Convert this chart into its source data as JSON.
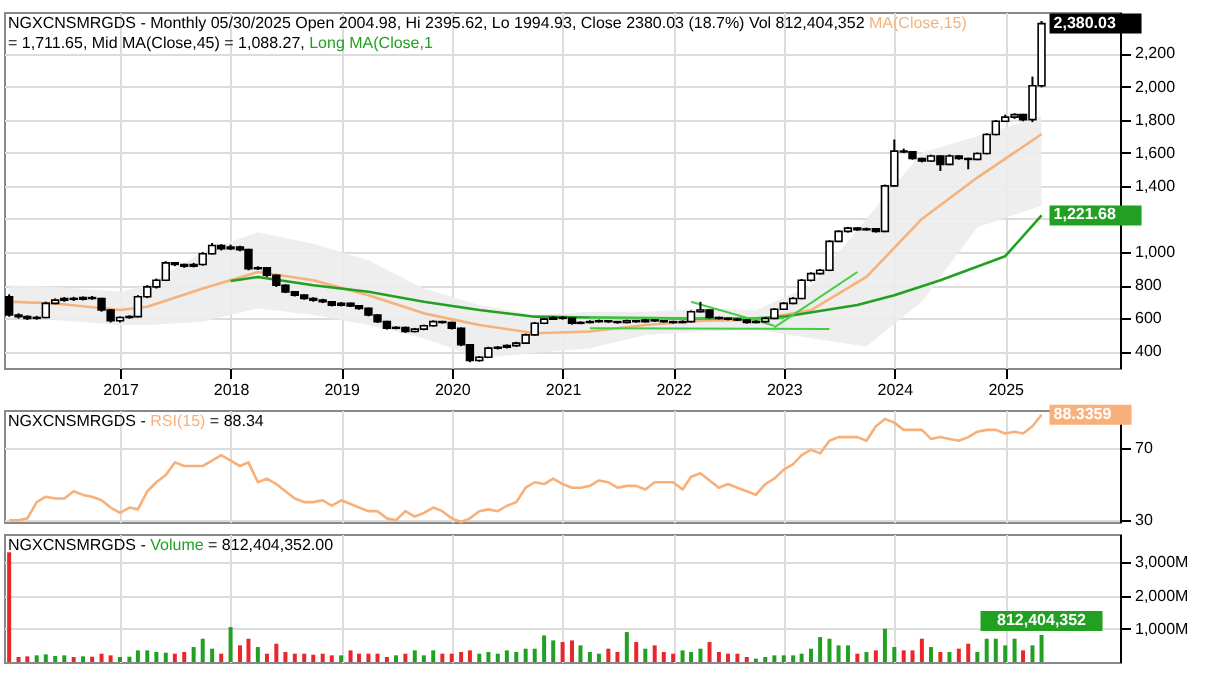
{
  "chart_data": [
    {
      "type": "candlestick",
      "title": "NGXCNSMRGDS - Monthly 05/30/2025 Open 2004.98, Hi 2395.62, Lo 1994.93, Close 2380.03 (18.7%) Vol 812,404,352",
      "legend": "top",
      "grid": true,
      "xlim": [
        "2015-12-15",
        "2026-01-15"
      ],
      "xticks": [
        "2017",
        "2018",
        "2019",
        "2020",
        "2021",
        "2022",
        "2023",
        "2024",
        "2025"
      ],
      "ylim": [
        300,
        2450
      ],
      "yticks": [
        400,
        600,
        800,
        {
          "value": 1000,
          "label": "1,000"
        },
        {
          "value": 1200,
          "label": null
        },
        {
          "value": 1400,
          "label": "1,400"
        },
        {
          "value": 1600,
          "label": "1,600"
        },
        {
          "value": 1800,
          "label": "1,800"
        },
        {
          "value": 2000,
          "label": "2,000"
        },
        {
          "value": 2200,
          "label": "2,200"
        }
      ],
      "x": [
        "2016-01",
        "2016-02",
        "2016-03",
        "2016-04",
        "2016-05",
        "2016-06",
        "2016-07",
        "2016-08",
        "2016-09",
        "2016-10",
        "2016-11",
        "2016-12",
        "2017-01",
        "2017-02",
        "2017-03",
        "2017-04",
        "2017-05",
        "2017-06",
        "2017-07",
        "2017-08",
        "2017-09",
        "2017-10",
        "2017-11",
        "2017-12",
        "2018-01",
        "2018-02",
        "2018-03",
        "2018-04",
        "2018-05",
        "2018-06",
        "2018-07",
        "2018-08",
        "2018-09",
        "2018-10",
        "2018-11",
        "2018-12",
        "2019-01",
        "2019-02",
        "2019-03",
        "2019-04",
        "2019-05",
        "2019-06",
        "2019-07",
        "2019-08",
        "2019-09",
        "2019-10",
        "2019-11",
        "2019-12",
        "2020-01",
        "2020-02",
        "2020-03",
        "2020-04",
        "2020-05",
        "2020-06",
        "2020-07",
        "2020-08",
        "2020-09",
        "2020-10",
        "2020-11",
        "2020-12",
        "2021-01",
        "2021-02",
        "2021-03",
        "2021-04",
        "2021-05",
        "2021-06",
        "2021-07",
        "2021-08",
        "2021-09",
        "2021-10",
        "2021-11",
        "2021-12",
        "2022-01",
        "2022-02",
        "2022-03",
        "2022-04",
        "2022-05",
        "2022-06",
        "2022-07",
        "2022-08",
        "2022-09",
        "2022-10",
        "2022-11",
        "2022-12",
        "2023-01",
        "2023-02",
        "2023-03",
        "2023-04",
        "2023-05",
        "2023-06",
        "2023-07",
        "2023-08",
        "2023-09",
        "2023-10",
        "2023-11",
        "2023-12",
        "2024-01",
        "2024-02",
        "2024-03",
        "2024-04",
        "2024-05",
        "2024-06",
        "2024-07",
        "2024-08",
        "2024-09",
        "2024-10",
        "2024-11",
        "2024-12",
        "2025-01",
        "2025-02",
        "2025-03",
        "2025-04",
        "2025-05"
      ],
      "ohlc": [
        [
          730,
          745,
          610,
          620
        ],
        [
          620,
          630,
          598,
          610
        ],
        [
          610,
          618,
          590,
          600
        ],
        [
          600,
          615,
          592,
          605
        ],
        [
          605,
          700,
          600,
          690
        ],
        [
          690,
          720,
          685,
          710
        ],
        [
          710,
          728,
          700,
          720
        ],
        [
          720,
          730,
          705,
          715
        ],
        [
          715,
          732,
          708,
          725
        ],
        [
          725,
          735,
          712,
          720
        ],
        [
          720,
          724,
          640,
          650
        ],
        [
          650,
          655,
          575,
          585
        ],
        [
          585,
          612,
          575,
          605
        ],
        [
          605,
          618,
          598,
          610
        ],
        [
          610,
          740,
          605,
          730
        ],
        [
          730,
          800,
          722,
          790
        ],
        [
          790,
          840,
          780,
          830
        ],
        [
          830,
          945,
          825,
          935
        ],
        [
          935,
          940,
          915,
          925
        ],
        [
          925,
          930,
          905,
          915
        ],
        [
          915,
          935,
          908,
          925
        ],
        [
          925,
          1000,
          918,
          990
        ],
        [
          990,
          1055,
          985,
          1040
        ],
        [
          1040,
          1048,
          1010,
          1020
        ],
        [
          1020,
          1045,
          1012,
          1030
        ],
        [
          1030,
          1038,
          1005,
          1015
        ],
        [
          1015,
          1020,
          890,
          900
        ],
        [
          900,
          915,
          892,
          905
        ],
        [
          905,
          910,
          850,
          860
        ],
        [
          860,
          865,
          790,
          800
        ],
        [
          800,
          805,
          752,
          760
        ],
        [
          760,
          765,
          732,
          740
        ],
        [
          740,
          745,
          712,
          720
        ],
        [
          720,
          728,
          700,
          710
        ],
        [
          710,
          718,
          692,
          700
        ],
        [
          700,
          705,
          672,
          680
        ],
        [
          680,
          698,
          672,
          690
        ],
        [
          690,
          695,
          668,
          675
        ],
        [
          675,
          680,
          652,
          660
        ],
        [
          660,
          665,
          612,
          620
        ],
        [
          620,
          625,
          572,
          580
        ],
        [
          580,
          585,
          532,
          540
        ],
        [
          540,
          552,
          534,
          545
        ],
        [
          545,
          550,
          512,
          520
        ],
        [
          520,
          542,
          515,
          535
        ],
        [
          535,
          562,
          528,
          555
        ],
        [
          555,
          588,
          550,
          580
        ],
        [
          580,
          585,
          568,
          575
        ],
        [
          575,
          580,
          532,
          540
        ],
        [
          540,
          545,
          432,
          440
        ],
        [
          440,
          445,
          335,
          345
        ],
        [
          345,
          372,
          338,
          365
        ],
        [
          365,
          428,
          360,
          420
        ],
        [
          420,
          432,
          412,
          425
        ],
        [
          425,
          442,
          418,
          435
        ],
        [
          435,
          458,
          428,
          450
        ],
        [
          450,
          508,
          445,
          500
        ],
        [
          500,
          578,
          495,
          570
        ],
        [
          570,
          602,
          565,
          595
        ],
        [
          595,
          612,
          590,
          605
        ],
        [
          605,
          612,
          592,
          600
        ],
        [
          600,
          604,
          562,
          570
        ],
        [
          570,
          582,
          565,
          575
        ],
        [
          575,
          588,
          570,
          580
        ],
        [
          580,
          592,
          575,
          585
        ],
        [
          585,
          590,
          572,
          580
        ],
        [
          580,
          584,
          568,
          575
        ],
        [
          575,
          592,
          570,
          585
        ],
        [
          585,
          590,
          574,
          580
        ],
        [
          580,
          597,
          575,
          590
        ],
        [
          590,
          594,
          578,
          585
        ],
        [
          585,
          590,
          574,
          580
        ],
        [
          580,
          585,
          568,
          575
        ],
        [
          575,
          588,
          570,
          580
        ],
        [
          580,
          648,
          575,
          640
        ],
        [
          640,
          700,
          635,
          650
        ],
        [
          650,
          655,
          598,
          605
        ],
        [
          605,
          610,
          594,
          600
        ],
        [
          600,
          604,
          588,
          595
        ],
        [
          595,
          600,
          584,
          590
        ],
        [
          590,
          595,
          568,
          575
        ],
        [
          575,
          588,
          570,
          580
        ],
        [
          580,
          608,
          575,
          600
        ],
        [
          600,
          662,
          595,
          655
        ],
        [
          655,
          698,
          650,
          690
        ],
        [
          690,
          728,
          685,
          720
        ],
        [
          720,
          838,
          715,
          830
        ],
        [
          830,
          878,
          822,
          870
        ],
        [
          870,
          898,
          865,
          890
        ],
        [
          890,
          1072,
          885,
          1065
        ],
        [
          1065,
          1132,
          1060,
          1125
        ],
        [
          1125,
          1152,
          1118,
          1145
        ],
        [
          1145,
          1150,
          1128,
          1135
        ],
        [
          1135,
          1148,
          1130,
          1140
        ],
        [
          1140,
          1145,
          1118,
          1125
        ],
        [
          1125,
          1408,
          1120,
          1400
        ],
        [
          1400,
          1680,
          1395,
          1610
        ],
        [
          1610,
          1625,
          1598,
          1605
        ],
        [
          1605,
          1610,
          1558,
          1565
        ],
        [
          1565,
          1570,
          1542,
          1550
        ],
        [
          1550,
          1588,
          1545,
          1580
        ],
        [
          1580,
          1585,
          1490,
          1530
        ],
        [
          1530,
          1590,
          1525,
          1580
        ],
        [
          1580,
          1585,
          1558,
          1565
        ],
        [
          1565,
          1570,
          1500,
          1560
        ],
        [
          1560,
          1602,
          1555,
          1595
        ],
        [
          1595,
          1718,
          1590,
          1710
        ],
        [
          1710,
          1798,
          1705,
          1790
        ],
        [
          1790,
          1830,
          1785,
          1815
        ],
        [
          1815,
          1838,
          1805,
          1830
        ],
        [
          1830,
          1835,
          1790,
          1800
        ],
        [
          1800,
          2060,
          1785,
          2004.98
        ],
        [
          2004.98,
          2395.62,
          1994.93,
          2380.03
        ]
      ],
      "series": [
        {
          "type": "line",
          "name": "MA(Close,15)",
          "color": "#f5b27c",
          "x": [
            "2016-01",
            "2016-06",
            "2017-01",
            "2017-04",
            "2017-10",
            "2018-04",
            "2018-10",
            "2019-04",
            "2019-10",
            "2020-04",
            "2020-10",
            "2021-04",
            "2021-10",
            "2022-04",
            "2022-10",
            "2023-04",
            "2023-10",
            "2024-04",
            "2024-10",
            "2025-05"
          ],
          "values": [
            700,
            690,
            650,
            670,
            780,
            880,
            830,
            740,
            630,
            560,
            510,
            520,
            560,
            585,
            590,
            650,
            850,
            1200,
            1450,
            1711.65
          ],
          "lower": [
            600,
            590,
            560,
            560,
            580,
            660,
            620,
            560,
            480,
            360,
            390,
            420,
            500,
            520,
            530,
            480,
            430,
            700,
            1150,
            1280
          ],
          "upper": [
            800,
            790,
            760,
            800,
            1000,
            1120,
            1050,
            950,
            780,
            680,
            620,
            640,
            640,
            660,
            650,
            800,
            1200,
            1600,
            1700,
            1820
          ]
        },
        {
          "type": "line",
          "name": "Long MA(Close,1",
          "color": "#22a022",
          "x": [
            "2018-01",
            "2018-04",
            "2018-10",
            "2019-04",
            "2019-10",
            "2020-04",
            "2020-10",
            "2021-04",
            "2022-01",
            "2022-10",
            "2023-01",
            "2023-09",
            "2024-01",
            "2024-06",
            "2025-01",
            "2025-05"
          ],
          "values": [
            825,
            850,
            800,
            760,
            700,
            650,
            610,
            605,
            600,
            600,
            610,
            680,
            740,
            830,
            975,
            1221.68
          ],
          "value_labels": [
            null,
            null,
            null,
            null,
            null,
            null,
            null,
            null,
            null,
            null,
            null,
            null,
            null,
            null,
            null,
            "1,221.68"
          ]
        },
        {
          "type": "line",
          "color": "#44cc44",
          "x": [
            "2021-04",
            "2023-01"
          ],
          "values": [
            600,
            600
          ]
        },
        {
          "type": "line",
          "color": "#44cc44",
          "x": [
            "2021-04",
            "2023-06"
          ],
          "values": [
            540,
            535
          ]
        },
        {
          "type": "line",
          "color": "#44cc44",
          "x": [
            "2022-03",
            "2022-12"
          ],
          "values": [
            700,
            555
          ]
        },
        {
          "type": "line",
          "color": "#44cc44",
          "x": [
            "2022-12",
            "2023-09"
          ],
          "values": [
            545,
            880
          ]
        }
      ],
      "annotations": [
        "= 1,711.65,",
        "Mid MA(Close,45) = 1,088.27,",
        {
          "text": "2,380.03",
          "x": "2025-05",
          "y": 2380.03
        }
      ]
    },
    {
      "type": "line",
      "title": "NGXCNSMRGDS -",
      "legend": "top left",
      "grid": true,
      "tick_labels": "y",
      "xlim": [
        "2015-12-15",
        "2026-01-15"
      ],
      "xticks": [
        "2017",
        "2018",
        "2019",
        "2020",
        "2021",
        "2022",
        "2023",
        "2024",
        "2025"
      ],
      "ylim": [
        29,
        91
      ],
      "yticks": [
        30,
        70
      ],
      "x": [
        "2016-01",
        "2016-02",
        "2016-03",
        "2016-04",
        "2016-05",
        "2016-06",
        "2016-07",
        "2016-08",
        "2016-09",
        "2016-10",
        "2016-11",
        "2016-12",
        "2017-01",
        "2017-02",
        "2017-03",
        "2017-04",
        "2017-05",
        "2017-06",
        "2017-07",
        "2017-08",
        "2017-09",
        "2017-10",
        "2017-11",
        "2017-12",
        "2018-01",
        "2018-02",
        "2018-03",
        "2018-04",
        "2018-05",
        "2018-06",
        "2018-07",
        "2018-08",
        "2018-09",
        "2018-10",
        "2018-11",
        "2018-12",
        "2019-01",
        "2019-02",
        "2019-03",
        "2019-04",
        "2019-05",
        "2019-06",
        "2019-07",
        "2019-08",
        "2019-09",
        "2019-10",
        "2019-11",
        "2019-12",
        "2020-01",
        "2020-02",
        "2020-03",
        "2020-04",
        "2020-05",
        "2020-06",
        "2020-07",
        "2020-08",
        "2020-09",
        "2020-10",
        "2020-11",
        "2020-12",
        "2021-01",
        "2021-02",
        "2021-03",
        "2021-04",
        "2021-05",
        "2021-06",
        "2021-07",
        "2021-08",
        "2021-09",
        "2021-10",
        "2021-11",
        "2021-12",
        "2022-01",
        "2022-02",
        "2022-03",
        "2022-04",
        "2022-05",
        "2022-06",
        "2022-07",
        "2022-08",
        "2022-09",
        "2022-10",
        "2022-11",
        "2022-12",
        "2023-01",
        "2023-02",
        "2023-03",
        "2023-04",
        "2023-05",
        "2023-06",
        "2023-07",
        "2023-08",
        "2023-09",
        "2023-10",
        "2023-11",
        "2023-12",
        "2024-01",
        "2024-02",
        "2024-03",
        "2024-04",
        "2024-05",
        "2024-06",
        "2024-07",
        "2024-08",
        "2024-09",
        "2024-10",
        "2024-11",
        "2024-12",
        "2025-01",
        "2025-02",
        "2025-03",
        "2025-04",
        "2025-05"
      ],
      "series": [
        {
          "name": "RSI(15)",
          "color": "#f8b07a",
          "values": [
            30,
            30,
            31,
            40,
            43,
            42,
            42,
            46,
            44,
            43,
            41,
            37,
            34,
            37,
            36,
            46,
            51,
            55,
            62,
            60,
            60,
            60,
            63,
            66,
            63,
            60,
            62,
            51,
            53,
            50,
            46,
            42,
            40,
            40,
            41,
            38,
            41,
            39,
            37,
            35,
            35,
            31,
            30,
            35,
            32,
            34,
            37,
            35,
            31,
            29,
            31,
            35,
            36,
            35,
            38,
            40,
            48,
            51,
            50,
            53,
            50,
            48,
            48,
            49,
            52,
            51,
            48,
            49,
            49,
            47,
            51,
            51,
            51,
            47,
            54,
            56,
            52,
            48,
            50,
            48,
            46,
            44,
            50,
            53,
            58,
            61,
            66,
            69,
            67,
            74,
            76,
            76,
            76,
            74,
            82,
            86,
            84,
            80,
            80,
            80,
            75,
            76,
            75,
            74,
            76,
            79,
            80,
            80,
            78,
            79,
            78,
            82,
            88.3359
          ],
          "value_labels": [
            null,
            null,
            null,
            null,
            null,
            null,
            null,
            null,
            null,
            null,
            null,
            null,
            null,
            null,
            null,
            null,
            null,
            null,
            null,
            null,
            null,
            null,
            null,
            null,
            null,
            null,
            null,
            null,
            null,
            null,
            null,
            null,
            null,
            null,
            null,
            null,
            null,
            null,
            null,
            null,
            null,
            null,
            null,
            null,
            null,
            null,
            null,
            null,
            null,
            null,
            null,
            null,
            null,
            null,
            null,
            null,
            null,
            null,
            null,
            null,
            null,
            null,
            null,
            null,
            null,
            null,
            null,
            null,
            null,
            null,
            null,
            null,
            null,
            null,
            null,
            null,
            null,
            null,
            null,
            null,
            null,
            null,
            null,
            null,
            null,
            null,
            null,
            null,
            null,
            null,
            null,
            null,
            null,
            null,
            null,
            null,
            null,
            null,
            null,
            null,
            null,
            null,
            null,
            null,
            null,
            null,
            null,
            null,
            null,
            null,
            null,
            null,
            "88.3359"
          ]
        }
      ],
      "annotations": [
        "= 88.34"
      ]
    },
    {
      "type": "bar",
      "title": "NGXCNSMRGDS -",
      "legend": "top left",
      "grid": true,
      "tick_labels": "y",
      "xlim": [
        "2015-12-15",
        "2026-01-15"
      ],
      "xticks": [
        "2017",
        "2018",
        "2019",
        "2020",
        "2021",
        "2022",
        "2023",
        "2024",
        "2025"
      ],
      "ylim": [
        0,
        3850000000
      ],
      "yticks": [
        {
          "value": 1000000000,
          "label": "1,000M"
        },
        {
          "value": 2000000000,
          "label": "2,000M"
        },
        {
          "value": 3000000000,
          "label": "3,000M"
        }
      ],
      "x": [
        "2016-01",
        "2016-02",
        "2016-03",
        "2016-04",
        "2016-05",
        "2016-06",
        "2016-07",
        "2016-08",
        "2016-09",
        "2016-10",
        "2016-11",
        "2016-12",
        "2017-01",
        "2017-02",
        "2017-03",
        "2017-04",
        "2017-05",
        "2017-06",
        "2017-07",
        "2017-08",
        "2017-09",
        "2017-10",
        "2017-11",
        "2017-12",
        "2018-01",
        "2018-02",
        "2018-03",
        "2018-04",
        "2018-05",
        "2018-06",
        "2018-07",
        "2018-08",
        "2018-09",
        "2018-10",
        "2018-11",
        "2018-12",
        "2019-01",
        "2019-02",
        "2019-03",
        "2019-04",
        "2019-05",
        "2019-06",
        "2019-07",
        "2019-08",
        "2019-09",
        "2019-10",
        "2019-11",
        "2019-12",
        "2020-01",
        "2020-02",
        "2020-03",
        "2020-04",
        "2020-05",
        "2020-06",
        "2020-07",
        "2020-08",
        "2020-09",
        "2020-10",
        "2020-11",
        "2020-12",
        "2021-01",
        "2021-02",
        "2021-03",
        "2021-04",
        "2021-05",
        "2021-06",
        "2021-07",
        "2021-08",
        "2021-09",
        "2021-10",
        "2021-11",
        "2021-12",
        "2022-01",
        "2022-02",
        "2022-03",
        "2022-04",
        "2022-05",
        "2022-06",
        "2022-07",
        "2022-08",
        "2022-09",
        "2022-10",
        "2022-11",
        "2022-12",
        "2023-01",
        "2023-02",
        "2023-03",
        "2023-04",
        "2023-05",
        "2023-06",
        "2023-07",
        "2023-08",
        "2023-09",
        "2023-10",
        "2023-11",
        "2023-12",
        "2024-01",
        "2024-02",
        "2024-03",
        "2024-04",
        "2024-05",
        "2024-06",
        "2024-07",
        "2024-08",
        "2024-09",
        "2024-10",
        "2024-11",
        "2024-12",
        "2025-01",
        "2025-02",
        "2025-03",
        "2025-04",
        "2025-05"
      ],
      "series": [
        {
          "name": "Volume",
          "color": "#22a022",
          "values": [
            3300000000,
            150000000,
            170000000,
            200000000,
            230000000,
            180000000,
            200000000,
            150000000,
            170000000,
            160000000,
            250000000,
            200000000,
            150000000,
            160000000,
            350000000,
            350000000,
            300000000,
            280000000,
            250000000,
            300000000,
            450000000,
            700000000,
            400000000,
            250000000,
            1050000000,
            500000000,
            700000000,
            450000000,
            250000000,
            550000000,
            300000000,
            250000000,
            250000000,
            220000000,
            250000000,
            200000000,
            200000000,
            350000000,
            250000000,
            250000000,
            250000000,
            150000000,
            200000000,
            250000000,
            350000000,
            200000000,
            350000000,
            250000000,
            250000000,
            300000000,
            350000000,
            250000000,
            300000000,
            250000000,
            350000000,
            300000000,
            400000000,
            400000000,
            800000000,
            650000000,
            600000000,
            650000000,
            500000000,
            300000000,
            250000000,
            400000000,
            300000000,
            900000000,
            600000000,
            400000000,
            500000000,
            300000000,
            250000000,
            350000000,
            300000000,
            400000000,
            600000000,
            300000000,
            250000000,
            250000000,
            150000000,
            100000000,
            150000000,
            200000000,
            200000000,
            200000000,
            250000000,
            400000000,
            750000000,
            700000000,
            500000000,
            500000000,
            250000000,
            300000000,
            350000000,
            1000000000,
            450000000,
            350000000,
            350000000,
            700000000,
            450000000,
            300000000,
            300000000,
            400000000,
            550000000,
            300000000,
            700000000,
            700000000,
            500000000,
            700000000,
            350000000,
            500000000,
            812404352
          ],
          "value_labels": [
            null,
            null,
            null,
            null,
            null,
            null,
            null,
            null,
            null,
            null,
            null,
            null,
            null,
            null,
            null,
            null,
            null,
            null,
            null,
            null,
            null,
            null,
            null,
            null,
            null,
            null,
            null,
            null,
            null,
            null,
            null,
            null,
            null,
            null,
            null,
            null,
            null,
            null,
            null,
            null,
            null,
            null,
            null,
            null,
            null,
            null,
            null,
            null,
            null,
            null,
            null,
            null,
            null,
            null,
            null,
            null,
            null,
            null,
            null,
            null,
            null,
            null,
            null,
            null,
            null,
            null,
            null,
            null,
            null,
            null,
            null,
            null,
            null,
            null,
            null,
            null,
            null,
            null,
            null,
            null,
            null,
            null,
            null,
            null,
            null,
            null,
            null,
            null,
            null,
            null,
            null,
            null,
            null,
            null,
            null,
            null,
            null,
            null,
            null,
            null,
            null,
            null,
            null,
            null,
            null,
            null,
            null,
            null,
            null,
            null,
            null,
            null,
            "812,404,352"
          ],
          "colors": [
            "#e8262b",
            "#e8262b",
            "#e8262b",
            "#22a022",
            "#22a022",
            "#22a022",
            "#22a022",
            "#e8262b",
            "#22a022",
            "#e8262b",
            "#e8262b",
            "#e8262b",
            "#22a022",
            "#22a022",
            "#22a022",
            "#22a022",
            "#22a022",
            "#22a022",
            "#e8262b",
            "#e8262b",
            "#22a022",
            "#22a022",
            "#22a022",
            "#e8262b",
            "#22a022",
            "#e8262b",
            "#e8262b",
            "#22a022",
            "#e8262b",
            "#e8262b",
            "#e8262b",
            "#e8262b",
            "#e8262b",
            "#e8262b",
            "#e8262b",
            "#e8262b",
            "#22a022",
            "#e8262b",
            "#e8262b",
            "#e8262b",
            "#e8262b",
            "#e8262b",
            "#22a022",
            "#e8262b",
            "#22a022",
            "#22a022",
            "#22a022",
            "#e8262b",
            "#e8262b",
            "#e8262b",
            "#e8262b",
            "#22a022",
            "#22a022",
            "#22a022",
            "#22a022",
            "#22a022",
            "#22a022",
            "#22a022",
            "#22a022",
            "#22a022",
            "#e8262b",
            "#e8262b",
            "#22a022",
            "#22a022",
            "#22a022",
            "#e8262b",
            "#e8262b",
            "#22a022",
            "#e8262b",
            "#22a022",
            "#e8262b",
            "#e8262b",
            "#e8262b",
            "#22a022",
            "#22a022",
            "#22a022",
            "#e8262b",
            "#e8262b",
            "#e8262b",
            "#e8262b",
            "#e8262b",
            "#22a022",
            "#22a022",
            "#22a022",
            "#22a022",
            "#22a022",
            "#22a022",
            "#22a022",
            "#22a022",
            "#22a022",
            "#22a022",
            "#22a022",
            "#e8262b",
            "#22a022",
            "#e8262b",
            "#22a022",
            "#22a022",
            "#e8262b",
            "#e8262b",
            "#e8262b",
            "#22a022",
            "#e8262b",
            "#22a022",
            "#e8262b",
            "#e8262b",
            "#22a022",
            "#22a022",
            "#22a022",
            "#22a022",
            "#22a022",
            "#e8262b",
            "#22a022",
            "#22a022"
          ]
        }
      ],
      "annotations": [
        "= 812,404,352.00"
      ]
    }
  ]
}
